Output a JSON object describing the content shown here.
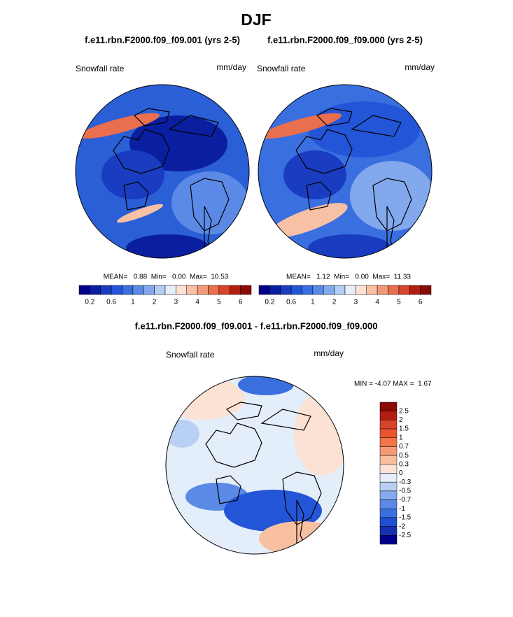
{
  "title": "DJF",
  "panels": [
    {
      "subtitle": "f.e11.rbn.F2000.f09_f09.001 (yrs 2-5)",
      "left_label": "Snowfall rate",
      "right_label": "mm/day",
      "stats": "MEAN=   0.88  Min=   0.00  Max=  10.53"
    },
    {
      "subtitle": "f.e11.rbn.F2000.f09_f09.000 (yrs 2-5)",
      "left_label": "Snowfall rate",
      "right_label": "mm/day",
      "stats": "MEAN=   1.12  Min=   0.00  Max=  11.33"
    }
  ],
  "colorbar": {
    "labels": [
      "0.2",
      "0.6",
      "1",
      "2",
      "3",
      "4",
      "5",
      "6"
    ],
    "colors": [
      "#00008c",
      "#0a1fa0",
      "#1a3cc0",
      "#2255d8",
      "#3a6fe0",
      "#5a8ae6",
      "#82a8ee",
      "#b4cdf4",
      "#e6eefa",
      "#fbe2d4",
      "#f8c0a4",
      "#f29a78",
      "#ea6f4e",
      "#d8442a",
      "#b31e12",
      "#8a0a06"
    ]
  },
  "difference": {
    "title": "f.e11.rbn.F2000.f09_f09.001 - f.e11.rbn.F2000.f09_f09.000",
    "left_label": "Snowfall rate",
    "right_label": "mm/day",
    "stats": "MIN = -4.07 MAX =  1.67",
    "colorbar": {
      "labels": [
        "2.5",
        "2",
        "1.5",
        "1",
        "0.7",
        "0.5",
        "0.3",
        "0",
        "-0.3",
        "-0.5",
        "-0.7",
        "-1",
        "-1.5",
        "-2",
        "-2.5"
      ],
      "colors": [
        "#8a0a06",
        "#b31e12",
        "#d8442a",
        "#ea5530",
        "#f27448",
        "#f59a74",
        "#f8bfa0",
        "#fbe2d4",
        "#e4eefa",
        "#b8d0f4",
        "#86aaee",
        "#5a8ae6",
        "#3a6fe0",
        "#1f4fd0",
        "#1430b0",
        "#00008c"
      ]
    }
  }
}
